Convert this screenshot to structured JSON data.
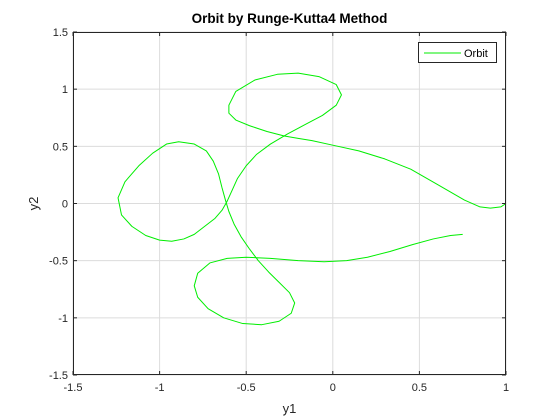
{
  "chart_data": {
    "type": "line",
    "title": "Orbit by Runge-Kutta4 Method",
    "xlabel": "y1",
    "ylabel": "y2",
    "xlim": [
      -1.5,
      1
    ],
    "ylim": [
      -1.5,
      1.5
    ],
    "xticks": [
      -1.5,
      -1,
      -0.5,
      0,
      0.5,
      1
    ],
    "yticks": [
      -1.5,
      -1,
      -0.5,
      0,
      0.5,
      1,
      1.5
    ],
    "xtick_labels": [
      "-1.5",
      "-1",
      "-0.5",
      "0",
      "0.5",
      "1"
    ],
    "ytick_labels": [
      "-1.5",
      "-1",
      "-0.5",
      "0",
      "0.5",
      "1",
      "1.5"
    ],
    "grid": true,
    "legend_position": "top-right",
    "colors": {
      "series": "#00ee00",
      "grid": "#dcdcdc",
      "axes": "#262626"
    },
    "series": [
      {
        "name": "Orbit",
        "points": [
          [
            1.0,
            0.0
          ],
          [
            0.97,
            -0.03
          ],
          [
            0.91,
            -0.04
          ],
          [
            0.85,
            -0.03
          ],
          [
            0.76,
            0.03
          ],
          [
            0.6,
            0.17
          ],
          [
            0.45,
            0.3
          ],
          [
            0.3,
            0.39
          ],
          [
            0.15,
            0.46
          ],
          [
            0.0,
            0.51
          ],
          [
            -0.12,
            0.55
          ],
          [
            -0.2,
            0.57
          ],
          [
            -0.28,
            0.59
          ],
          [
            -0.38,
            0.63
          ],
          [
            -0.48,
            0.68
          ],
          [
            -0.56,
            0.73
          ],
          [
            -0.6,
            0.79
          ],
          [
            -0.6,
            0.86
          ],
          [
            -0.56,
            0.98
          ],
          [
            -0.45,
            1.08
          ],
          [
            -0.32,
            1.13
          ],
          [
            -0.2,
            1.14
          ],
          [
            -0.08,
            1.11
          ],
          [
            0.02,
            1.04
          ],
          [
            0.05,
            0.95
          ],
          [
            0.02,
            0.86
          ],
          [
            -0.06,
            0.77
          ],
          [
            -0.16,
            0.69
          ],
          [
            -0.26,
            0.61
          ],
          [
            -0.36,
            0.52
          ],
          [
            -0.44,
            0.43
          ],
          [
            -0.5,
            0.33
          ],
          [
            -0.55,
            0.22
          ],
          [
            -0.58,
            0.12
          ],
          [
            -0.61,
            0.02
          ],
          [
            -0.64,
            -0.06
          ],
          [
            -0.68,
            -0.13
          ],
          [
            -0.74,
            -0.2
          ],
          [
            -0.8,
            -0.27
          ],
          [
            -0.86,
            -0.31
          ],
          [
            -0.93,
            -0.33
          ],
          [
            -1.0,
            -0.32
          ],
          [
            -1.08,
            -0.28
          ],
          [
            -1.16,
            -0.2
          ],
          [
            -1.22,
            -0.1
          ],
          [
            -1.24,
            0.05
          ],
          [
            -1.2,
            0.19
          ],
          [
            -1.12,
            0.33
          ],
          [
            -1.04,
            0.44
          ],
          [
            -0.96,
            0.52
          ],
          [
            -0.89,
            0.54
          ],
          [
            -0.8,
            0.52
          ],
          [
            -0.73,
            0.46
          ],
          [
            -0.69,
            0.37
          ],
          [
            -0.66,
            0.26
          ],
          [
            -0.64,
            0.14
          ],
          [
            -0.62,
            0.03
          ],
          [
            -0.6,
            -0.07
          ],
          [
            -0.57,
            -0.18
          ],
          [
            -0.53,
            -0.29
          ],
          [
            -0.48,
            -0.4
          ],
          [
            -0.43,
            -0.5
          ],
          [
            -0.37,
            -0.6
          ],
          [
            -0.31,
            -0.69
          ],
          [
            -0.25,
            -0.78
          ],
          [
            -0.22,
            -0.87
          ],
          [
            -0.24,
            -0.96
          ],
          [
            -0.31,
            -1.03
          ],
          [
            -0.41,
            -1.06
          ],
          [
            -0.52,
            -1.05
          ],
          [
            -0.63,
            -1.0
          ],
          [
            -0.72,
            -0.92
          ],
          [
            -0.78,
            -0.82
          ],
          [
            -0.8,
            -0.72
          ],
          [
            -0.78,
            -0.61
          ],
          [
            -0.71,
            -0.52
          ],
          [
            -0.61,
            -0.48
          ],
          [
            -0.5,
            -0.47
          ],
          [
            -0.36,
            -0.48
          ],
          [
            -0.2,
            -0.5
          ],
          [
            -0.05,
            -0.51
          ],
          [
            0.08,
            -0.5
          ],
          [
            0.2,
            -0.47
          ],
          [
            0.33,
            -0.42
          ],
          [
            0.46,
            -0.36
          ],
          [
            0.58,
            -0.31
          ],
          [
            0.68,
            -0.28
          ],
          [
            0.75,
            -0.27
          ]
        ]
      }
    ]
  }
}
